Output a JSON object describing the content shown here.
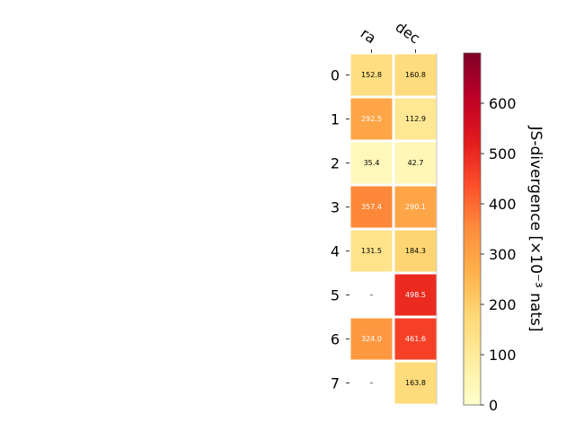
{
  "chart_data": {
    "type": "heatmap",
    "columns": [
      "ra",
      "dec"
    ],
    "rows": [
      "0",
      "1",
      "2",
      "3",
      "4",
      "5",
      "6",
      "7"
    ],
    "values": [
      [
        152.8,
        160.8
      ],
      [
        292.5,
        112.9
      ],
      [
        35.4,
        42.7
      ],
      [
        357.4,
        290.1
      ],
      [
        131.5,
        184.3
      ],
      [
        null,
        498.5
      ],
      [
        324.0,
        461.6
      ],
      [
        null,
        163.8
      ]
    ],
    "cell_labels": [
      [
        "152.8",
        "160.8"
      ],
      [
        "292.5",
        "112.9"
      ],
      [
        "35.4",
        "42.7"
      ],
      [
        "357.4",
        "290.1"
      ],
      [
        "131.5",
        "184.3"
      ],
      [
        "–",
        "498.5"
      ],
      [
        "324.0",
        "461.6"
      ],
      [
        "–",
        "163.8"
      ]
    ],
    "colormap": "YlOrRd",
    "vmin": 0,
    "vmax": 700,
    "colorbar": {
      "ticks": [
        "0",
        "100",
        "200",
        "300",
        "400",
        "500",
        "600"
      ],
      "tick_values": [
        0,
        100,
        200,
        300,
        400,
        500,
        600
      ],
      "label": "JS-divergence [×10⁻³ nats]"
    }
  }
}
